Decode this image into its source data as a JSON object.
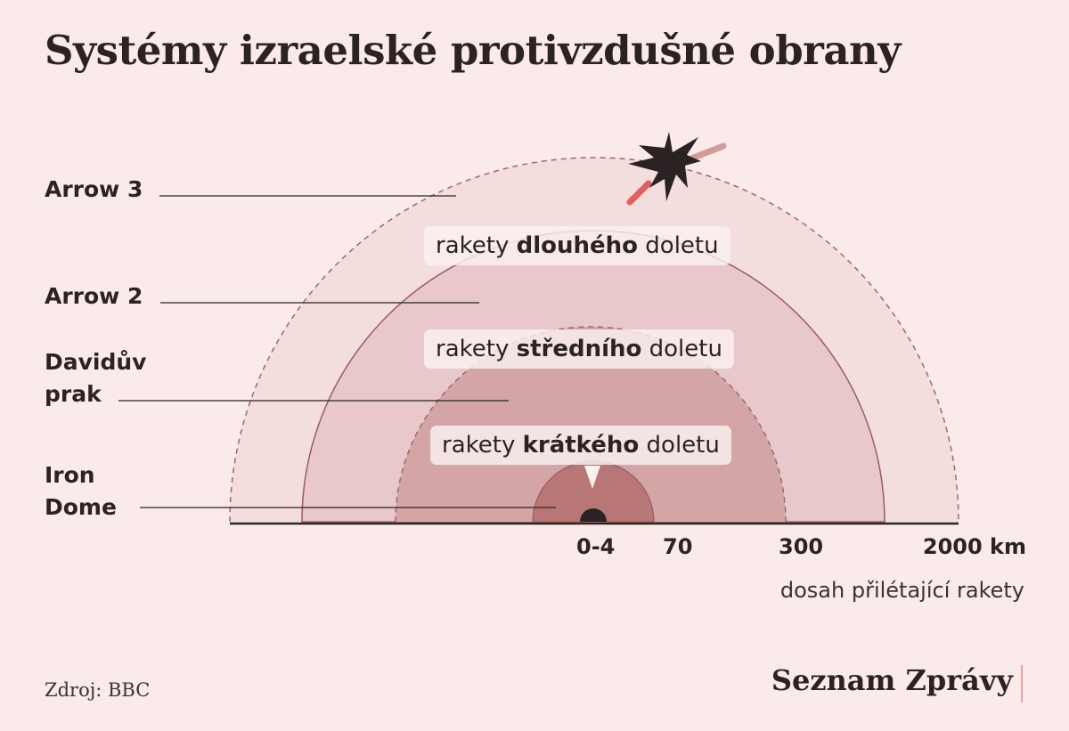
{
  "title": "Systémy izraelské protivzdušné obrany",
  "systems": {
    "arrow3": "Arrow 3",
    "arrow2": "Arrow 2",
    "davids_sling_line1": "Davidův",
    "davids_sling_line2": "prak",
    "iron_dome_line1": "Iron",
    "iron_dome_line2": "Dome"
  },
  "zones": {
    "long": {
      "prefix": "rakety ",
      "bold": "dlouhého",
      "suffix": " doletu"
    },
    "medium": {
      "prefix": "rakety ",
      "bold": "středního",
      "suffix": " doletu"
    },
    "short": {
      "prefix": "rakety ",
      "bold": "krátkého",
      "suffix": " doletu"
    }
  },
  "axis": {
    "ticks": [
      "0-4",
      "70",
      "300",
      "2000 km"
    ],
    "caption": "dosah přilétající rakety"
  },
  "source": "Zdroj: BBC",
  "brand": "Seznam Zprávy",
  "colors": {
    "background": "#fbeaea",
    "zone_long": "#f3dddd",
    "zone_arrow2": "#e8c8ca",
    "zone_medium": "#d3a5a7",
    "zone_short": "#b97676",
    "outline": "#a06868",
    "text": "#2b2323",
    "missile_red": "#e06060",
    "missile_pink": "#d49a9a"
  }
}
